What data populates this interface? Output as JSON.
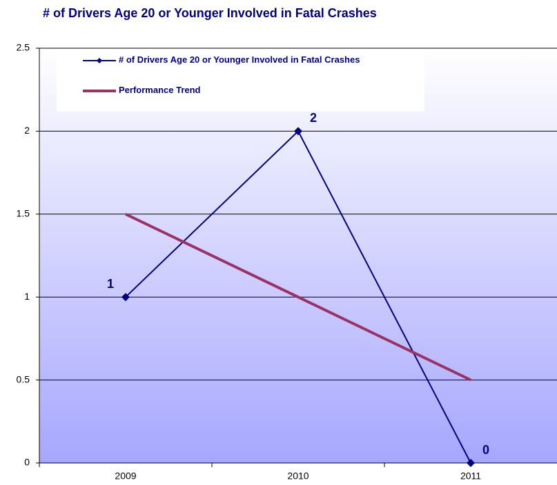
{
  "chart_data": {
    "type": "line",
    "title": "# of Drivers Age 20 or Younger Involved in Fatal Crashes",
    "categories": [
      "2009",
      "2010",
      "2011"
    ],
    "series": [
      {
        "name": "# of Drivers Age 20 or Younger Involved in Fatal Crashes",
        "color": "#000080",
        "values": [
          1,
          2,
          0
        ]
      },
      {
        "name": "Performance Trend",
        "color": "#993366",
        "values": [
          1.5,
          1,
          0.5
        ]
      }
    ],
    "ylim": [
      0,
      2.5
    ],
    "yticks": [
      0,
      0.5,
      1,
      1.5,
      2,
      2.5
    ],
    "grid": true
  }
}
